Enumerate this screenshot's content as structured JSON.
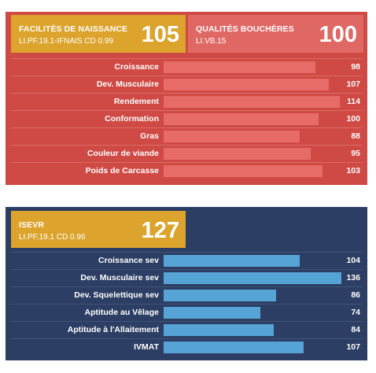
{
  "boucherie": {
    "facilites": {
      "name": "FACILITÉS DE NAISSANCE",
      "ref": "LI.PF.19.1-IFNAIS CD 0.99",
      "score": "105"
    },
    "qualites": {
      "name": "QUALITÉS BOUCHÈRES",
      "ref": "LI.VB.15",
      "score": "100"
    },
    "rows": [
      {
        "label": "Croissance",
        "value": 98
      },
      {
        "label": "Dev. Musculaire",
        "value": 107
      },
      {
        "label": "Rendement",
        "value": 114
      },
      {
        "label": "Conformation",
        "value": 100
      },
      {
        "label": "Gras",
        "value": 88
      },
      {
        "label": "Couleur de viande",
        "value": 95
      },
      {
        "label": "Poids de Carcasse",
        "value": 103
      }
    ],
    "scale_max": 116,
    "colors": {
      "panel": "#cf4a45",
      "bar": "#e76b66",
      "badge": "#dca42d"
    }
  },
  "isevr": {
    "box": {
      "name": "ISEVR",
      "ref": "LI.PF.19.1 CD 0.96",
      "score": "127"
    },
    "rows": [
      {
        "label": "Croissance sev",
        "value": 104
      },
      {
        "label": "Dev. Musculaire sev",
        "value": 136
      },
      {
        "label": "Dev. Squelettique sev",
        "value": 86
      },
      {
        "label": "Aptitude au Vêlage",
        "value": 74
      },
      {
        "label": "Aptitude à l'Allaitement",
        "value": 84
      },
      {
        "label": "IVMAT",
        "value": 107
      }
    ],
    "scale_max": 137,
    "colors": {
      "panel": "#2c3e63",
      "bar": "#56a3d6",
      "badge": "#dca42d"
    }
  }
}
